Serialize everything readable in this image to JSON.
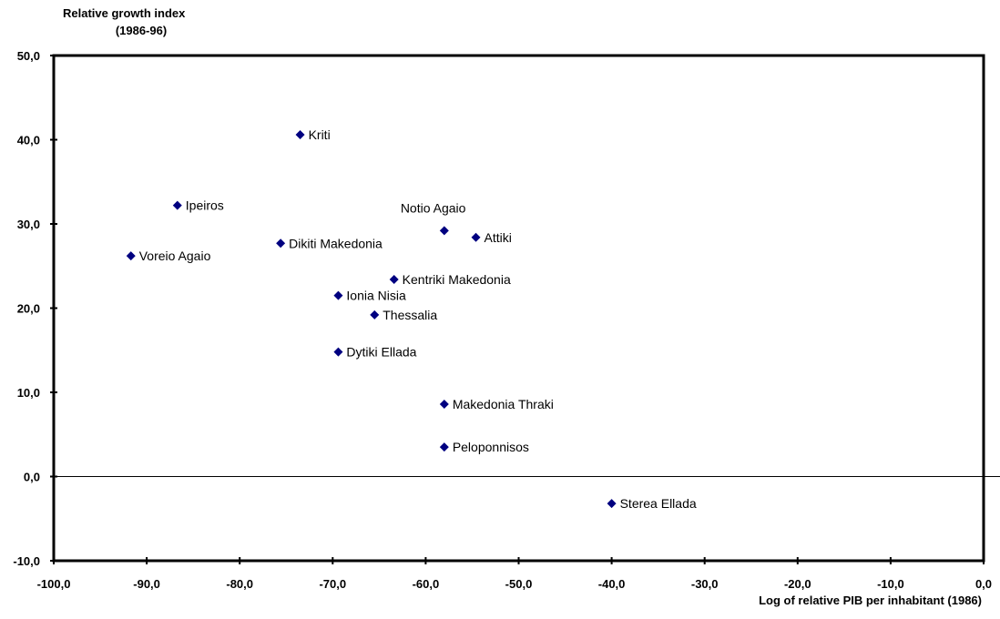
{
  "chart_data": {
    "type": "scatter",
    "title": "",
    "ylabel_line1": "Relative growth index",
    "ylabel_line2": "(1986-96)",
    "xlabel": "Log of relative PIB per inhabitant (1986)",
    "xlim": [
      -100,
      0
    ],
    "ylim": [
      -10,
      50
    ],
    "x_ticks": [
      -100,
      -90,
      -80,
      -70,
      -60,
      -50,
      -40,
      -30,
      -20,
      -10,
      0
    ],
    "x_tick_labels": [
      "-100,0",
      "-90,0",
      "-80,0",
      "-70,0",
      "-60,0",
      "-50,0",
      "-40,0",
      "-30,0",
      "-20,0",
      "-10,0",
      "0,0"
    ],
    "y_ticks": [
      -10,
      0,
      10,
      20,
      30,
      40,
      50
    ],
    "y_tick_labels": [
      "-10,0",
      "0,0",
      "10,0",
      "20,0",
      "30,0",
      "40,0",
      "50,0"
    ],
    "grid": false,
    "marker_color": "#000080",
    "points": [
      {
        "label": "Kriti",
        "x": -73.5,
        "y": 40.6
      },
      {
        "label": "Ipeiros",
        "x": -86.7,
        "y": 32.2
      },
      {
        "label": "Voreio Agaio",
        "x": -91.7,
        "y": 26.2
      },
      {
        "label": "Dikiti Makedonia",
        "x": -75.6,
        "y": 27.7
      },
      {
        "label": "Notio Agaio",
        "x": -58.0,
        "y": 29.2
      },
      {
        "label": "Attiki",
        "x": -54.6,
        "y": 28.4
      },
      {
        "label": "Kentriki Makedonia",
        "x": -63.4,
        "y": 23.4
      },
      {
        "label": "Ionia Nisia",
        "x": -69.4,
        "y": 21.5
      },
      {
        "label": "Thessalia",
        "x": -65.5,
        "y": 19.2
      },
      {
        "label": "Dytiki Ellada",
        "x": -69.4,
        "y": 14.8
      },
      {
        "label": "Makedonia Thraki",
        "x": -58.0,
        "y": 8.6
      },
      {
        "label": "Peloponnisos",
        "x": -58.0,
        "y": 3.5
      },
      {
        "label": "Sterea Ellada",
        "x": -40.0,
        "y": -3.2
      }
    ]
  }
}
